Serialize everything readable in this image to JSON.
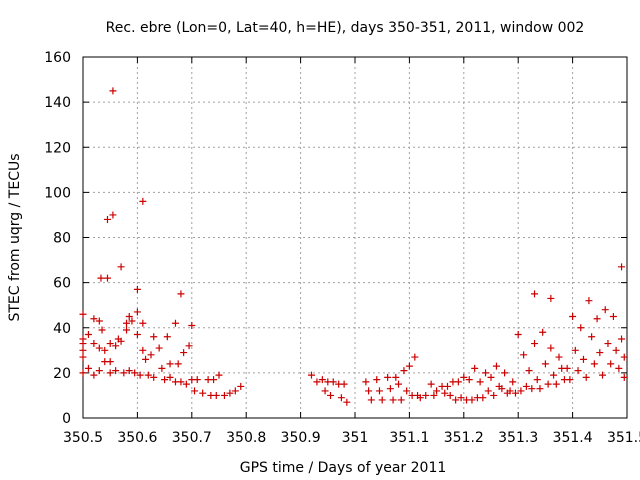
{
  "chart_data": {
    "type": "scatter",
    "title": "Rec. ebre (Lon=0, Lat=40, h=HE), days 350-351, 2011, window 002",
    "xlabel": "GPS time / Days of year 2011",
    "ylabel": "STEC from uqrg / TECUs",
    "xlim": [
      350.5,
      351.5
    ],
    "ylim": [
      0,
      160
    ],
    "x_ticks": [
      350.5,
      350.6,
      350.7,
      350.8,
      350.9,
      351,
      351.1,
      351.2,
      351.3,
      351.4,
      351.5
    ],
    "x_tick_labels": [
      "350.5",
      "350.6",
      "350.7",
      "350.8",
      "350.9",
      "351",
      "351.1",
      "351.2",
      "351.3",
      "351.4",
      "351.5"
    ],
    "y_ticks": [
      0,
      20,
      40,
      60,
      80,
      100,
      120,
      140,
      160
    ],
    "y_tick_labels": [
      "0",
      "20",
      "40",
      "60",
      "80",
      "100",
      "120",
      "140",
      "160"
    ],
    "grid": true,
    "marker": "+",
    "marker_color": "#cc0000",
    "series": [
      {
        "points": [
          [
            350.5,
            46
          ],
          [
            350.5,
            35
          ],
          [
            350.5,
            33
          ],
          [
            350.5,
            30
          ],
          [
            350.5,
            27
          ],
          [
            350.5,
            20
          ],
          [
            350.51,
            37
          ],
          [
            350.51,
            22
          ],
          [
            350.52,
            44
          ],
          [
            350.52,
            33
          ],
          [
            350.52,
            19
          ],
          [
            350.53,
            43
          ],
          [
            350.53,
            31
          ],
          [
            350.53,
            21
          ],
          [
            350.533,
            62
          ],
          [
            350.535,
            39
          ],
          [
            350.54,
            30
          ],
          [
            350.54,
            25
          ],
          [
            350.545,
            62
          ],
          [
            350.545,
            88
          ],
          [
            350.55,
            33
          ],
          [
            350.55,
            25
          ],
          [
            350.55,
            20
          ],
          [
            350.555,
            145
          ],
          [
            350.555,
            90
          ],
          [
            350.56,
            32
          ],
          [
            350.56,
            21
          ],
          [
            350.565,
            35
          ],
          [
            350.57,
            67
          ],
          [
            350.57,
            34
          ],
          [
            350.575,
            20
          ],
          [
            350.58,
            42
          ],
          [
            350.58,
            39
          ],
          [
            350.585,
            45
          ],
          [
            350.585,
            21
          ],
          [
            350.59,
            43
          ],
          [
            350.595,
            20
          ],
          [
            350.6,
            57
          ],
          [
            350.6,
            47
          ],
          [
            350.6,
            37
          ],
          [
            350.605,
            19
          ],
          [
            350.61,
            96
          ],
          [
            350.61,
            42
          ],
          [
            350.61,
            30
          ],
          [
            350.615,
            26
          ],
          [
            350.62,
            19
          ],
          [
            350.625,
            28
          ],
          [
            350.63,
            36
          ],
          [
            350.63,
            18
          ],
          [
            350.64,
            31
          ],
          [
            350.645,
            22
          ],
          [
            350.65,
            17
          ],
          [
            350.655,
            36
          ],
          [
            350.66,
            24
          ],
          [
            350.66,
            18
          ],
          [
            350.67,
            42
          ],
          [
            350.67,
            16
          ],
          [
            350.675,
            24
          ],
          [
            350.68,
            55
          ],
          [
            350.68,
            16
          ],
          [
            350.685,
            29
          ],
          [
            350.69,
            15
          ],
          [
            350.695,
            32
          ],
          [
            350.7,
            41
          ],
          [
            350.7,
            17
          ],
          [
            350.705,
            12
          ],
          [
            350.71,
            17
          ],
          [
            350.72,
            11
          ],
          [
            350.73,
            17
          ],
          [
            350.735,
            10
          ],
          [
            350.74,
            17
          ],
          [
            350.745,
            10
          ],
          [
            350.75,
            19
          ],
          [
            350.76,
            10
          ],
          [
            350.77,
            11
          ],
          [
            350.78,
            12
          ],
          [
            350.79,
            14
          ],
          [
            350.92,
            19
          ],
          [
            350.93,
            16
          ],
          [
            350.94,
            17
          ],
          [
            350.945,
            12
          ],
          [
            350.95,
            16
          ],
          [
            350.955,
            10
          ],
          [
            350.96,
            16
          ],
          [
            350.97,
            15
          ],
          [
            350.975,
            9
          ],
          [
            350.98,
            15
          ],
          [
            350.985,
            7
          ],
          [
            351.02,
            16
          ],
          [
            351.025,
            12
          ],
          [
            351.03,
            8
          ],
          [
            351.04,
            17
          ],
          [
            351.045,
            12
          ],
          [
            351.05,
            8
          ],
          [
            351.06,
            18
          ],
          [
            351.065,
            13
          ],
          [
            351.07,
            8
          ],
          [
            351.075,
            18
          ],
          [
            351.08,
            15
          ],
          [
            351.085,
            8
          ],
          [
            351.09,
            21
          ],
          [
            351.095,
            12
          ],
          [
            351.1,
            23
          ],
          [
            351.105,
            10
          ],
          [
            351.11,
            27
          ],
          [
            351.115,
            10
          ],
          [
            351.12,
            9
          ],
          [
            351.13,
            10
          ],
          [
            351.14,
            15
          ],
          [
            351.145,
            10
          ],
          [
            351.15,
            12
          ],
          [
            351.16,
            14
          ],
          [
            351.165,
            11
          ],
          [
            351.17,
            14
          ],
          [
            351.175,
            10
          ],
          [
            351.18,
            16
          ],
          [
            351.185,
            8
          ],
          [
            351.19,
            16
          ],
          [
            351.195,
            9
          ],
          [
            351.2,
            18
          ],
          [
            351.205,
            8
          ],
          [
            351.21,
            17
          ],
          [
            351.215,
            8
          ],
          [
            351.22,
            22
          ],
          [
            351.225,
            9
          ],
          [
            351.23,
            16
          ],
          [
            351.235,
            9
          ],
          [
            351.24,
            20
          ],
          [
            351.245,
            12
          ],
          [
            351.25,
            18
          ],
          [
            351.255,
            10
          ],
          [
            351.26,
            23
          ],
          [
            351.265,
            14
          ],
          [
            351.27,
            13
          ],
          [
            351.275,
            20
          ],
          [
            351.28,
            11
          ],
          [
            351.285,
            12
          ],
          [
            351.29,
            16
          ],
          [
            351.295,
            11
          ],
          [
            351.3,
            37
          ],
          [
            351.305,
            12
          ],
          [
            351.31,
            28
          ],
          [
            351.315,
            14
          ],
          [
            351.32,
            21
          ],
          [
            351.325,
            13
          ],
          [
            351.33,
            55
          ],
          [
            351.33,
            33
          ],
          [
            351.335,
            17
          ],
          [
            351.34,
            13
          ],
          [
            351.345,
            38
          ],
          [
            351.35,
            24
          ],
          [
            351.355,
            15
          ],
          [
            351.36,
            53
          ],
          [
            351.36,
            31
          ],
          [
            351.365,
            19
          ],
          [
            351.37,
            15
          ],
          [
            351.375,
            27
          ],
          [
            351.38,
            22
          ],
          [
            351.385,
            17
          ],
          [
            351.39,
            22
          ],
          [
            351.395,
            17
          ],
          [
            351.4,
            45
          ],
          [
            351.405,
            30
          ],
          [
            351.41,
            21
          ],
          [
            351.415,
            40
          ],
          [
            351.42,
            26
          ],
          [
            351.425,
            18
          ],
          [
            351.43,
            52
          ],
          [
            351.435,
            36
          ],
          [
            351.44,
            24
          ],
          [
            351.445,
            44
          ],
          [
            351.45,
            29
          ],
          [
            351.455,
            19
          ],
          [
            351.46,
            48
          ],
          [
            351.465,
            33
          ],
          [
            351.47,
            24
          ],
          [
            351.475,
            45
          ],
          [
            351.48,
            30
          ],
          [
            351.485,
            22
          ],
          [
            351.49,
            67
          ],
          [
            351.49,
            35
          ],
          [
            351.495,
            27
          ],
          [
            351.495,
            18
          ]
        ]
      }
    ]
  }
}
